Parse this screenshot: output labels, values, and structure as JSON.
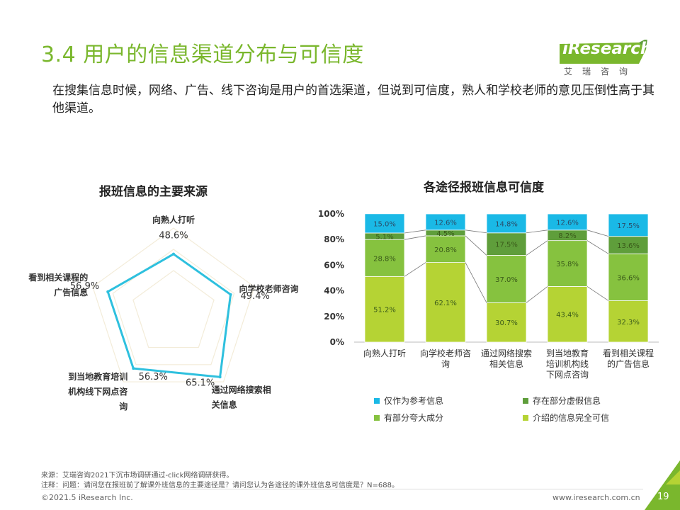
{
  "title": "3.4 用户的信息渠道分布与可信度",
  "logo": {
    "name": "iResearch",
    "sub": "艾瑞咨询"
  },
  "intro": "在搜集信息时候，网络、广告、线下咨询是用户的首选渠道，但说到可信度，熟人和学校老师的意见压倒性高于其他渠道。",
  "colors": {
    "title_green": "#7ab72d",
    "radar_line": "#2ec0de",
    "ref_only": "#1ab9e6",
    "partly_false": "#5f9e3b",
    "exaggerated": "#86c23f",
    "fully_trusted": "#b5d334"
  },
  "chart_data": [
    {
      "type": "radar",
      "title": "报班信息的主要来源",
      "categories": [
        "向熟人打听",
        "向学校老师咨询",
        "通过网络搜索相关信息",
        "到当地教育培训机构线下网点咨询",
        "看到相关课程的广告信息"
      ],
      "category_label_lines": [
        [
          "向熟人打听"
        ],
        [
          "向学校老师咨询"
        ],
        [
          "通过网络搜索相",
          "关信息"
        ],
        [
          "到当地教育培训",
          "机构线下网点咨",
          "询"
        ],
        [
          "看到相关课程的",
          "广告信息"
        ]
      ],
      "values": [
        48.6,
        49.4,
        65.1,
        56.3,
        56.9
      ],
      "value_labels": [
        "48.6%",
        "49.4%",
        "65.1%",
        "56.3%",
        "56.9%"
      ],
      "range": [
        0,
        70
      ]
    },
    {
      "type": "bar",
      "stacked": true,
      "title": "各途径报班信息可信度",
      "categories": [
        "向熟人打听",
        "向学校老师咨询",
        "通过网络搜索相关信息",
        "到当地教育培训机构线下网点咨询",
        "看到相关课程的广告信息"
      ],
      "category_label_lines": [
        [
          "向熟人打听"
        ],
        [
          "向学校老师咨",
          "询"
        ],
        [
          "通过网络搜索",
          "相关信息"
        ],
        [
          "到当地教育",
          "培训机构线",
          "下网点咨询"
        ],
        [
          "看到相关课程",
          "的广告信息"
        ]
      ],
      "series": [
        {
          "name": "介绍的信息完全可信",
          "values": [
            51.2,
            62.1,
            30.7,
            43.4,
            32.3
          ]
        },
        {
          "name": "有部分夸大成分",
          "values": [
            28.8,
            20.8,
            37.0,
            35.8,
            36.6
          ]
        },
        {
          "name": "存在部分虚假信息",
          "values": [
            5.1,
            4.5,
            17.5,
            8.2,
            13.6
          ]
        },
        {
          "name": "仅作为参考信息",
          "values": [
            15.0,
            12.6,
            14.8,
            12.6,
            17.5
          ]
        }
      ],
      "legend": [
        "仅作为参考信息",
        "存在部分虚假信息",
        "有部分夸大成分",
        "介绍的信息完全可信"
      ],
      "y_ticks": [
        "0%",
        "20%",
        "40%",
        "60%",
        "80%",
        "100%"
      ],
      "ylim": [
        0,
        100
      ]
    }
  ],
  "footer": {
    "source": "来源：艾瑞咨询2021下沉市场调研通过-click网络调研获得。",
    "note": "注释：问题：请问您在报班前了解课外班信息的主要途径是？请问您认为各途径的课外班信息可信度是？N=688。",
    "copyright": "©2021.5 iResearch Inc.",
    "url": "www.iresearch.com.cn",
    "page": "19"
  }
}
